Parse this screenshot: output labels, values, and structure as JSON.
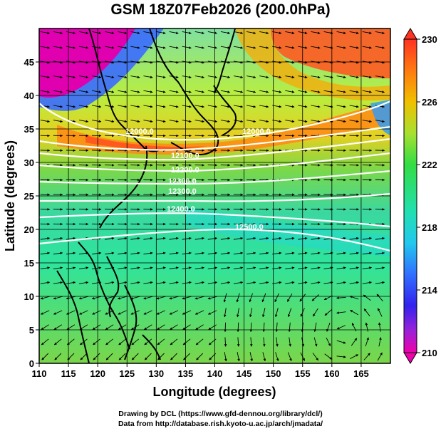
{
  "title": "GSM 18Z07Feb2026 (200.0hPa)",
  "axes": {
    "xlabel": "Longitude (degrees)",
    "ylabel": "Latitude  (degrees)",
    "x_ticks": [
      "110",
      "115",
      "120",
      "125",
      "130",
      "135",
      "140",
      "145",
      "150",
      "155",
      "160",
      "165"
    ],
    "y_ticks": [
      "0",
      "5",
      "10",
      "15",
      "20",
      "25",
      "30",
      "35",
      "40",
      "45"
    ],
    "xlim": [
      110,
      170
    ],
    "ylim": [
      0,
      50
    ]
  },
  "colorbar": {
    "labels": [
      "230",
      "226",
      "222",
      "218",
      "214",
      "210"
    ],
    "range": [
      210,
      230
    ],
    "colors": [
      "#ee00aa",
      "#3344ff",
      "#22ccee",
      "#33dd44",
      "#f0c000",
      "#ff4433"
    ]
  },
  "contour_labels": [
    "12000.0",
    "12000.0",
    "12100.0",
    "12200.0",
    "12300.0",
    "12300.0",
    "12400.0",
    "12500.0"
  ],
  "credits": {
    "line1": "Drawing by DCL (https://www.gfd-dennou.org/library/dcl/)",
    "line2": "Data from http://database.rish.kyoto-u.ac.jp/arch/jmadata/"
  }
}
